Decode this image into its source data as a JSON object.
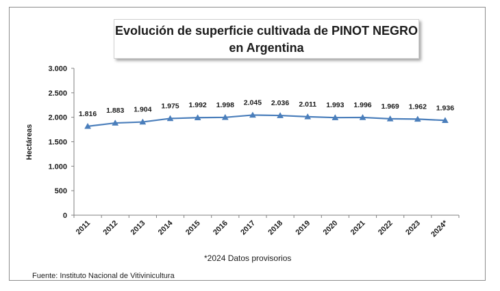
{
  "chart_data": {
    "type": "line",
    "title_line1": "Evolución de superficie cultivada de PINOT NEGRO",
    "title_line2": "en Argentina",
    "xlabel": "",
    "ylabel": "Hectáreas",
    "categories": [
      "2011",
      "2012",
      "2013",
      "2014",
      "2015",
      "2016",
      "2017",
      "2018",
      "2019",
      "2020",
      "2021",
      "2022",
      "2023",
      "2024*"
    ],
    "series": [
      {
        "name": "Superficie",
        "values": [
          1816,
          1883,
          1904,
          1975,
          1992,
          1998,
          2045,
          2036,
          2011,
          1993,
          1996,
          1969,
          1962,
          1936
        ],
        "data_labels": [
          "1.816",
          "1.883",
          "1.904",
          "1.975",
          "1.992",
          "1.998",
          "2.045",
          "2.036",
          "2.011",
          "1.993",
          "1.996",
          "1.969",
          "1.962",
          "1.936"
        ],
        "color": "#4a7ebb"
      }
    ],
    "ylim": [
      0,
      3000
    ],
    "yticks": [
      0,
      500,
      1000,
      1500,
      2000,
      2500,
      3000
    ],
    "ytick_labels": [
      "0",
      "500",
      "1.000",
      "1.500",
      "2.000",
      "2.500",
      "3.000"
    ],
    "grid": false,
    "marker": "triangle",
    "note": "*2024  Datos provisorios",
    "source": "Fuente: Instituto Nacional de Vitivinicultura"
  }
}
